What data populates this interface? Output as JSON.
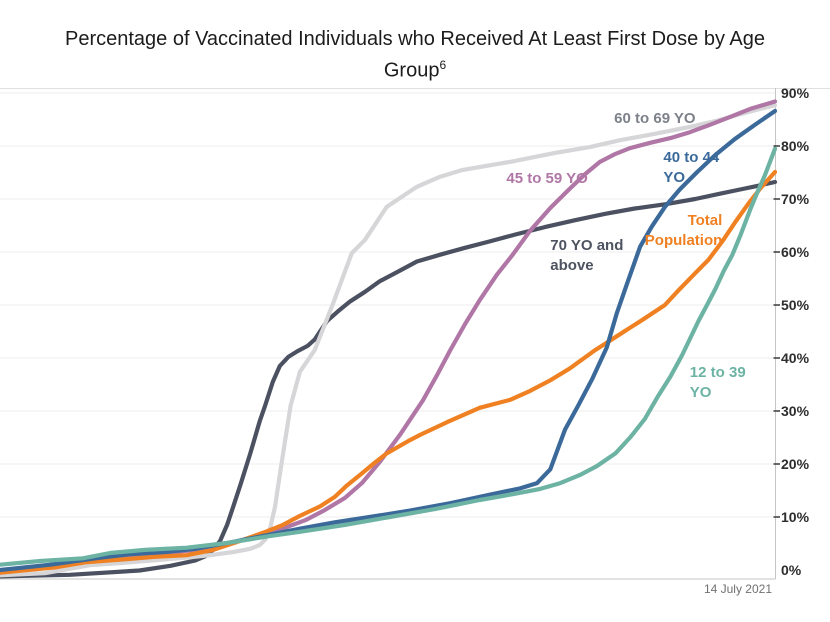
{
  "title": {
    "line1": "Percentage of Vaccinated Individuals who Received At Least First Dose by Age",
    "line2": "Group",
    "footnote_superscript": "6"
  },
  "chart_data": {
    "type": "line",
    "title": "Percentage of Vaccinated Individuals who Received At Least First Dose by Age Group",
    "xlabel": "",
    "ylabel": "",
    "x_units": "0-100 normalized position across displayed timeline (chart shows no x tick labels)",
    "date_label": "14 July 2021",
    "ylim": [
      0,
      90
    ],
    "ytick_values": [
      0,
      10,
      20,
      30,
      40,
      50,
      60,
      70,
      80,
      90
    ],
    "ytick_labels": [
      "0%",
      "10%",
      "20%",
      "30%",
      "40%",
      "50%",
      "60%",
      "70%",
      "80%",
      "90%"
    ],
    "grid": "horizontal",
    "legend": "inline colored labels beside each line",
    "colors": {
      "background": "#ffffff",
      "gridline": "#ededed",
      "top_border": "#e0e0e0",
      "axis_line": "#c5c5c5",
      "tick_mark": "#454545",
      "tick_label_text": "#2d2d2d",
      "date_text": "#707070",
      "title_text": "#1c1c1c"
    },
    "series": [
      {
        "id": "70-and-above",
        "name": "70 YO and above",
        "color": "#4b5160",
        "end_value_pct": 73.2,
        "label": {
          "lines": [
            "70 YO and",
            "above"
          ],
          "x": 71,
          "y": 60.4,
          "anchor": "start",
          "color": "#4d5360"
        },
        "points": [
          [
            0,
            -1.2
          ],
          [
            9,
            -0.9
          ],
          [
            18,
            -0.1
          ],
          [
            22,
            0.8
          ],
          [
            25.2,
            1.8
          ],
          [
            26.5,
            2.6
          ],
          [
            27.5,
            3.8
          ],
          [
            28.4,
            5.5
          ],
          [
            29.3,
            8.5
          ],
          [
            30.1,
            12
          ],
          [
            31,
            16
          ],
          [
            32.3,
            22
          ],
          [
            33.5,
            28
          ],
          [
            34.2,
            31
          ],
          [
            35.2,
            35.5
          ],
          [
            36.1,
            38.5
          ],
          [
            37.2,
            40.2
          ],
          [
            38.4,
            41.3
          ],
          [
            39.7,
            42.3
          ],
          [
            40.6,
            43.5
          ],
          [
            42.2,
            47
          ],
          [
            43.6,
            48.8
          ],
          [
            45.2,
            50.7
          ],
          [
            47.1,
            52.5
          ],
          [
            49,
            54.5
          ],
          [
            51.6,
            56.5
          ],
          [
            53.8,
            58.2
          ],
          [
            56.8,
            59.5
          ],
          [
            60,
            60.8
          ],
          [
            63.2,
            62
          ],
          [
            66.5,
            63.3
          ],
          [
            70.3,
            64.7
          ],
          [
            74.2,
            66
          ],
          [
            78.1,
            67.2
          ],
          [
            81.9,
            68.2
          ],
          [
            85.8,
            69
          ],
          [
            89.7,
            70
          ],
          [
            92.9,
            71
          ],
          [
            95.5,
            71.8
          ],
          [
            97.8,
            72.5
          ],
          [
            100,
            73.2
          ]
        ]
      },
      {
        "id": "60-to-69",
        "name": "60 to 69 YO",
        "color": "#d6d6d8",
        "end_value_pct": 87.7,
        "label": {
          "lines": [
            "60 to 69 YO"
          ],
          "x": 84.5,
          "y": 84.3,
          "anchor": "middle",
          "color": "#7d818a"
        },
        "points": [
          [
            0,
            -1
          ],
          [
            5.8,
            -0.6
          ],
          [
            11.6,
            0.9
          ],
          [
            15.5,
            1.3
          ],
          [
            20.6,
            1.9
          ],
          [
            24.5,
            2.4
          ],
          [
            27.7,
            2.9
          ],
          [
            30.1,
            3.4
          ],
          [
            32.3,
            4
          ],
          [
            33.5,
            4.7
          ],
          [
            34.2,
            5.7
          ],
          [
            34.8,
            7.5
          ],
          [
            35.5,
            12
          ],
          [
            36,
            17
          ],
          [
            36.8,
            24.5
          ],
          [
            37.5,
            31
          ],
          [
            38.7,
            37.4
          ],
          [
            40.6,
            41.5
          ],
          [
            43,
            50.4
          ],
          [
            45.4,
            59.8
          ],
          [
            47.1,
            62.3
          ],
          [
            49.9,
            68.5
          ],
          [
            53.8,
            72.3
          ],
          [
            56.8,
            74.2
          ],
          [
            59.7,
            75.5
          ],
          [
            65.8,
            77
          ],
          [
            71.6,
            78.7
          ],
          [
            76.1,
            79.8
          ],
          [
            80,
            81.1
          ],
          [
            84.5,
            82.3
          ],
          [
            89,
            83.6
          ],
          [
            92.3,
            84.7
          ],
          [
            95.5,
            86
          ],
          [
            98.1,
            87
          ],
          [
            100,
            87.7
          ]
        ]
      },
      {
        "id": "45-to-59",
        "name": "45 to 59 YO",
        "color": "#b077a6",
        "end_value_pct": 88.4,
        "label": {
          "lines": [
            "45 to 59 YO"
          ],
          "x": 70.6,
          "y": 73,
          "anchor": "middle",
          "color": "#b077a6"
        },
        "points": [
          [
            0,
            -0.5
          ],
          [
            6.5,
            0.5
          ],
          [
            12.3,
            1.9
          ],
          [
            16.8,
            2.6
          ],
          [
            21.3,
            3.2
          ],
          [
            25.2,
            3.8
          ],
          [
            29.7,
            5
          ],
          [
            33.5,
            6.6
          ],
          [
            36.8,
            8
          ],
          [
            39.4,
            9.4
          ],
          [
            41.9,
            11.3
          ],
          [
            44.5,
            13.6
          ],
          [
            46.7,
            16.4
          ],
          [
            49,
            20.4
          ],
          [
            51.6,
            25.5
          ],
          [
            54.6,
            32.1
          ],
          [
            56.4,
            36.8
          ],
          [
            58.1,
            41.5
          ],
          [
            60,
            46.4
          ],
          [
            61.9,
            50.9
          ],
          [
            64.1,
            55.7
          ],
          [
            66.1,
            59.4
          ],
          [
            68.4,
            64
          ],
          [
            71,
            68.3
          ],
          [
            73.5,
            71.9
          ],
          [
            75.5,
            74.7
          ],
          [
            77.4,
            77
          ],
          [
            79.4,
            78.5
          ],
          [
            81.3,
            79.6
          ],
          [
            83.9,
            80.6
          ],
          [
            86.5,
            81.5
          ],
          [
            89,
            82.6
          ],
          [
            91.6,
            84
          ],
          [
            94.2,
            85.5
          ],
          [
            96.8,
            87
          ],
          [
            100,
            88.4
          ]
        ]
      },
      {
        "id": "total-population",
        "name": "Total Population",
        "color": "#f08122",
        "end_value_pct": 75.1,
        "label": {
          "lines": [
            "Total",
            "Population"
          ],
          "x": 93.2,
          "y": 65.1,
          "anchor": "end",
          "color": "#f08122"
        },
        "points": [
          [
            0,
            -0.5
          ],
          [
            7.1,
            0.5
          ],
          [
            11.2,
            1.5
          ],
          [
            15.1,
            1.9
          ],
          [
            20,
            2.5
          ],
          [
            24.1,
            2.8
          ],
          [
            27.5,
            3.8
          ],
          [
            31,
            5.5
          ],
          [
            33.9,
            7
          ],
          [
            36.5,
            8.5
          ],
          [
            38.7,
            10.2
          ],
          [
            41.3,
            12
          ],
          [
            43.2,
            13.8
          ],
          [
            44.8,
            16
          ],
          [
            46.5,
            18
          ],
          [
            48.4,
            20.3
          ],
          [
            49.9,
            22
          ],
          [
            52.9,
            24.5
          ],
          [
            54.2,
            25.5
          ],
          [
            57.7,
            27.9
          ],
          [
            61.9,
            30.6
          ],
          [
            65.8,
            32.1
          ],
          [
            68.4,
            33.8
          ],
          [
            71,
            35.8
          ],
          [
            73.5,
            38
          ],
          [
            76.8,
            41.5
          ],
          [
            80,
            44.5
          ],
          [
            83.2,
            47.5
          ],
          [
            85.8,
            50
          ],
          [
            87.7,
            53
          ],
          [
            89.7,
            56
          ],
          [
            91.4,
            58.5
          ],
          [
            93.2,
            62
          ],
          [
            94.8,
            65.5
          ],
          [
            96.5,
            69
          ],
          [
            98.1,
            72
          ],
          [
            100,
            75.1
          ]
        ]
      },
      {
        "id": "40-to-44",
        "name": "40 to 44 YO",
        "color": "#3b6a9a",
        "end_value_pct": 86.6,
        "label": {
          "lines": [
            "40 to 44",
            "YO"
          ],
          "x": 85.6,
          "y": 77,
          "anchor": "start",
          "color": "#3b6a9a"
        },
        "points": [
          [
            0,
            0
          ],
          [
            6.5,
            1
          ],
          [
            12.3,
            2.2
          ],
          [
            16.8,
            3
          ],
          [
            21.3,
            3.4
          ],
          [
            25.2,
            4
          ],
          [
            29.7,
            5.2
          ],
          [
            34.2,
            6.5
          ],
          [
            38.7,
            7.8
          ],
          [
            43.2,
            9
          ],
          [
            47.7,
            10
          ],
          [
            52.9,
            11.2
          ],
          [
            58.1,
            12.6
          ],
          [
            63.2,
            14.2
          ],
          [
            67.1,
            15.4
          ],
          [
            69.3,
            16.4
          ],
          [
            71,
            19
          ],
          [
            72.9,
            26.5
          ],
          [
            74.6,
            31
          ],
          [
            76.4,
            36
          ],
          [
            78.3,
            42
          ],
          [
            79.6,
            48.5
          ],
          [
            80.9,
            54
          ],
          [
            82.6,
            61
          ],
          [
            84.1,
            64.8
          ],
          [
            85.8,
            68.5
          ],
          [
            87.7,
            71.8
          ],
          [
            89.9,
            75
          ],
          [
            92.3,
            78.3
          ],
          [
            94.8,
            81.3
          ],
          [
            97.4,
            84
          ],
          [
            100,
            86.6
          ]
        ]
      },
      {
        "id": "12-to-39",
        "name": "12 to 39 YO",
        "color": "#6cb3a4",
        "end_value_pct": 79.5,
        "label": {
          "lines": [
            "12 to 39",
            "YO"
          ],
          "x": 89,
          "y": 36.4,
          "anchor": "start",
          "color": "#6cb3a4"
        },
        "points": [
          [
            0,
            1
          ],
          [
            5.2,
            1.7
          ],
          [
            10.7,
            2.2
          ],
          [
            14.2,
            3.2
          ],
          [
            18.7,
            3.8
          ],
          [
            24.1,
            4.2
          ],
          [
            29.3,
            5.1
          ],
          [
            34.8,
            6.4
          ],
          [
            38.7,
            7.2
          ],
          [
            44.5,
            8.5
          ],
          [
            50.3,
            10
          ],
          [
            56.1,
            11.5
          ],
          [
            61.9,
            13.2
          ],
          [
            66.5,
            14.4
          ],
          [
            69.7,
            15.3
          ],
          [
            72.3,
            16.4
          ],
          [
            74.8,
            17.9
          ],
          [
            77,
            19.6
          ],
          [
            79.4,
            22
          ],
          [
            81.3,
            25
          ],
          [
            83.2,
            28.5
          ],
          [
            84.9,
            32.8
          ],
          [
            86.5,
            36.5
          ],
          [
            88,
            40.5
          ],
          [
            90.1,
            46.9
          ],
          [
            91.4,
            50.5
          ],
          [
            92.3,
            53
          ],
          [
            93.4,
            56.5
          ],
          [
            94.5,
            59.5
          ],
          [
            95.5,
            63
          ],
          [
            96.8,
            68
          ],
          [
            97.8,
            71.5
          ],
          [
            98.7,
            74.5
          ],
          [
            100,
            79.5
          ]
        ]
      }
    ]
  }
}
